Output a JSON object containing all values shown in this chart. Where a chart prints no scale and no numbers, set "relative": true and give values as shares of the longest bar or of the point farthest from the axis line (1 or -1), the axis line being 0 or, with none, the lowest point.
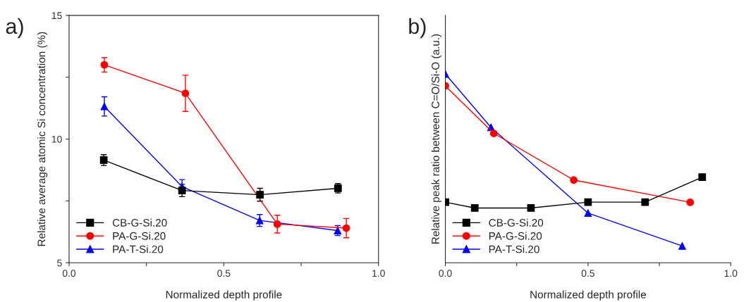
{
  "chart_data": [
    {
      "type": "line",
      "title": "a)",
      "xlabel": "Normalized depth profile",
      "ylabel": "Relative average atomic Si concentration (%)",
      "xlim": [
        0,
        1
      ],
      "xticks": [
        {
          "value": 0,
          "label": "0.0"
        },
        {
          "value": 0.25,
          "label": null
        },
        0.5,
        {
          "value": 0.75,
          "label": null
        },
        {
          "value": 1,
          "label": "1.0"
        }
      ],
      "ylim": [
        5,
        15
      ],
      "yticks": [
        5,
        {
          "value": 7.5,
          "label": null
        },
        10,
        {
          "value": 12.5,
          "label": null
        },
        15
      ],
      "legend": "bottom left",
      "grid": false,
      "series": [
        {
          "name": "CB-G-Si.20",
          "color": "#000000",
          "marker": "square",
          "x": [
            0.112,
            0.365,
            0.617,
            0.869
          ],
          "values": [
            9.15,
            7.92,
            7.75,
            8.01
          ],
          "errors": [
            0.22,
            0.25,
            0.26,
            0.19
          ]
        },
        {
          "name": "PA-G-Si.20",
          "color": "#ff0000",
          "marker": "circle",
          "x": [
            0.114,
            0.376,
            0.673,
            0.896
          ],
          "values": [
            13.0,
            11.85,
            6.56,
            6.4
          ],
          "errors": [
            0.29,
            0.73,
            0.36,
            0.39
          ]
        },
        {
          "name": "PA-T-Si.20",
          "color": "#0000ff",
          "marker": "triangle",
          "x": [
            0.114,
            0.365,
            0.616,
            0.868
          ],
          "values": [
            11.32,
            8.08,
            6.71,
            6.3
          ],
          "errors": [
            0.39,
            0.28,
            0.24,
            0.2
          ]
        }
      ]
    },
    {
      "type": "line",
      "title": "b)",
      "xlabel": "Normalized depth profile",
      "ylabel": "Relative peak ratio between C=O/Si-O (a.u.)",
      "relative": true,
      "xlim": [
        0,
        1
      ],
      "xticks": [
        {
          "value": 0,
          "label": "0.0"
        },
        {
          "value": 0.25,
          "label": null
        },
        0.5,
        {
          "value": 0.75,
          "label": null
        },
        {
          "value": 1,
          "label": "1.0"
        }
      ],
      "legend": "bottom left",
      "grid": false,
      "series": [
        {
          "name": "CB-G-Si.20",
          "color": "#000000",
          "marker": "square",
          "x": [
            0.0,
            0.103,
            0.3,
            0.5,
            0.7,
            0.9
          ],
          "values": [
            0.321,
            0.29,
            0.29,
            0.321,
            0.321,
            0.453
          ]
        },
        {
          "name": "PA-G-Si.20",
          "color": "#ff0000",
          "marker": "circle",
          "x": [
            0.0,
            0.17,
            0.45,
            0.858
          ],
          "values": [
            0.937,
            0.685,
            0.438,
            0.32
          ]
        },
        {
          "name": "PA-T-Si.20",
          "color": "#0000ff",
          "marker": "triangle",
          "x": [
            0.0,
            0.16,
            0.5,
            0.83
          ],
          "values": [
            1.0,
            0.717,
            0.263,
            0.089
          ]
        }
      ]
    }
  ]
}
